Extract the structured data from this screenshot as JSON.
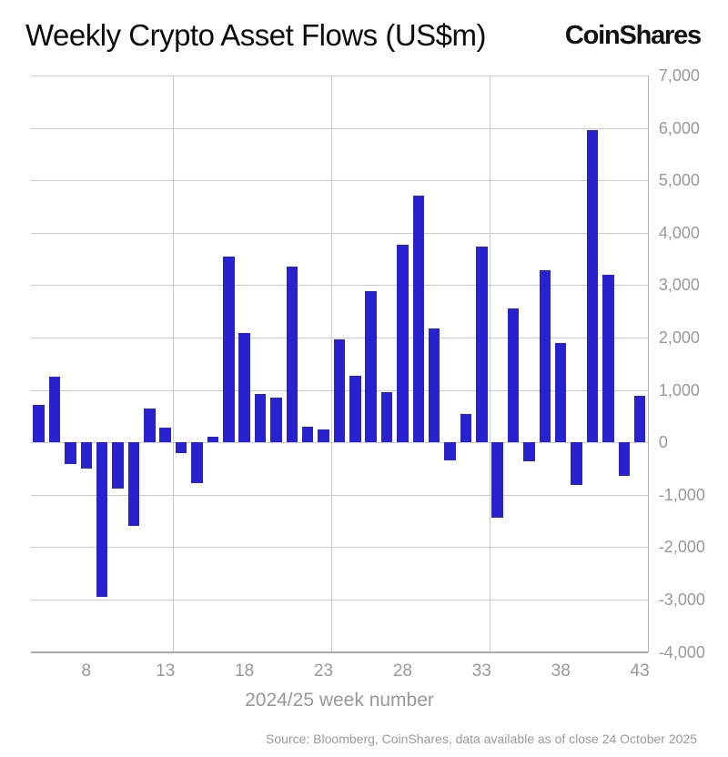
{
  "header": {
    "title": "Weekly Crypto Asset Flows (US$m)",
    "brand": "CoinShares"
  },
  "chart_data": {
    "type": "bar",
    "title": "Weekly Crypto Asset Flows (US$m)",
    "xlabel": "2024/25 week number",
    "ylabel": "",
    "categories": [
      5,
      6,
      7,
      8,
      9,
      10,
      11,
      12,
      13,
      14,
      15,
      16,
      17,
      18,
      19,
      20,
      21,
      22,
      23,
      24,
      25,
      26,
      27,
      28,
      29,
      30,
      31,
      32,
      33,
      34,
      35,
      36,
      37,
      38,
      39,
      40,
      41,
      42,
      43
    ],
    "values": [
      720,
      1250,
      -420,
      -500,
      -2950,
      -890,
      -1590,
      640,
      280,
      -210,
      -780,
      100,
      3540,
      2080,
      920,
      850,
      3350,
      290,
      250,
      1970,
      1270,
      2890,
      960,
      3770,
      4710,
      2180,
      -350,
      540,
      3740,
      -1440,
      2550,
      -370,
      3290,
      1890,
      -810,
      5960,
      3190,
      -640,
      890
    ],
    "ylim": [
      -4000,
      7000
    ],
    "ytick_step": 1000,
    "xticks": [
      8,
      13,
      18,
      23,
      28,
      33,
      38,
      43
    ],
    "x_gridlines_after_weeks": [
      13,
      23,
      33
    ],
    "grid": true,
    "legend": "none",
    "bar_color": "#2722cd"
  },
  "footer": {
    "source": "Source: Bloomberg, CoinShares, data available as of close 24 October 2025"
  },
  "colors": {
    "bar": "#2722cd",
    "gridline": "#cccccc",
    "axis_line": "#a9a9a9",
    "tick_label": "#999999",
    "title_text": "#0b0b0b",
    "background": "#ffffff"
  }
}
